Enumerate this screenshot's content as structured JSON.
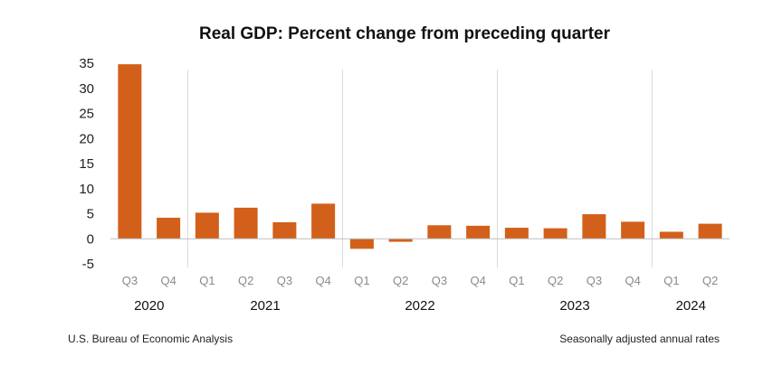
{
  "chart_data": {
    "type": "bar",
    "title": "Real GDP: Percent change from preceding quarter",
    "source": "U.S. Bureau of Economic Analysis",
    "note": "Seasonally adjusted annual rates",
    "ylim": [
      -5,
      35
    ],
    "yticks": [
      35,
      30,
      25,
      20,
      15,
      10,
      5,
      0,
      -5
    ],
    "categories": [
      "Q3",
      "Q4",
      "Q1",
      "Q2",
      "Q3",
      "Q4",
      "Q1",
      "Q2",
      "Q3",
      "Q4",
      "Q1",
      "Q2",
      "Q3",
      "Q4",
      "Q1",
      "Q2"
    ],
    "years": [
      {
        "label": "2020",
        "count": 2
      },
      {
        "label": "2021",
        "count": 4
      },
      {
        "label": "2022",
        "count": 4
      },
      {
        "label": "2023",
        "count": 4
      },
      {
        "label": "2024",
        "count": 2
      }
    ],
    "values": [
      34.8,
      4.2,
      5.2,
      6.2,
      3.3,
      7.0,
      -2.0,
      -0.6,
      2.7,
      2.6,
      2.2,
      2.1,
      4.9,
      3.4,
      1.4,
      3.0
    ],
    "bar_color": "#d2601a",
    "grid": false
  }
}
